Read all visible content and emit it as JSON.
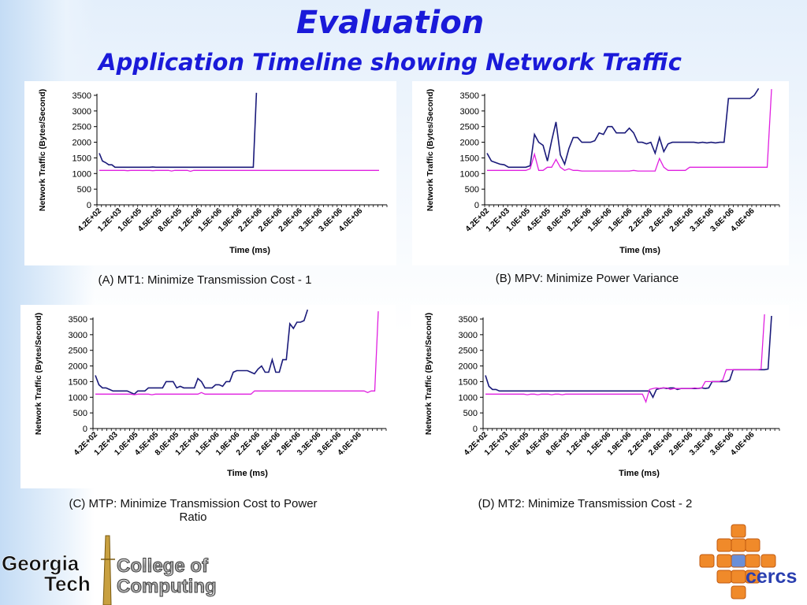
{
  "header": {
    "title": "Evaluation",
    "subtitle": "Application Timeline showing Network Traffic"
  },
  "colors": {
    "series_primary": "#1a1a7a",
    "series_secondary": "#e020e0",
    "title": "#1a1ad9"
  },
  "captions": {
    "a": "(A) MT1: Minimize Transmission Cost - 1",
    "b": "(B) MPV: Minimize Power Variance",
    "c_line1": "(C) MTP: Minimize Transmission Cost to Power",
    "c_line2": "Ratio",
    "d": "(D) MT2: Minimize Transmission Cost - 2"
  },
  "logos": {
    "left": {
      "word1": "Georgia",
      "word2": "Tech",
      "word3": "College of",
      "word4": "Computing"
    },
    "right": {
      "text": "cercs"
    }
  },
  "chart_data": [
    {
      "type": "line",
      "panel": "A",
      "xlabel": "Time (ms)",
      "ylabel": "Network Traffic (Bytes/Second)",
      "ylim": [
        0,
        3500
      ],
      "yticks": [
        0,
        500,
        1000,
        1500,
        2000,
        2500,
        3000,
        3500
      ],
      "x_tick_labels": [
        "4.2E+02",
        "1.2E+03",
        "1.0E+05",
        "4.5E+05",
        "8.0E+05",
        "1.2E+06",
        "1.5E+06",
        "1.9E+06",
        "2.2E+06",
        "2.6E+06",
        "2.9E+06",
        "3.3E+06",
        "3.6E+06",
        "4.0E+06"
      ],
      "series": [
        {
          "values": [
            1650,
            1400,
            1350,
            1280,
            1280,
            1200,
            1200,
            1200,
            1200,
            1200,
            1200,
            1200,
            1200,
            1200,
            1200,
            1200,
            1200,
            1210,
            1200,
            1200,
            1200,
            1200,
            1200,
            1200,
            1200,
            1200,
            1200,
            1200,
            1200,
            1200,
            1200,
            1200,
            1200,
            1200,
            1200,
            1200,
            1200,
            1200,
            1200,
            1200,
            1200,
            1200,
            1200,
            1200,
            1200,
            1200,
            1200,
            1200,
            1200,
            1200,
            3580
          ]
        },
        {
          "values": [
            1100,
            1100,
            1100,
            1100,
            1100,
            1100,
            1100,
            1100,
            1100,
            1090,
            1100,
            1100,
            1100,
            1100,
            1100,
            1100,
            1100,
            1090,
            1100,
            1100,
            1100,
            1100,
            1100,
            1080,
            1100,
            1100,
            1100,
            1100,
            1100,
            1070,
            1100,
            1100,
            1100,
            1100,
            1100,
            1100,
            1100,
            1100,
            1100,
            1100,
            1100,
            1100,
            1100,
            1100,
            1100,
            1100,
            1100,
            1100,
            1100,
            1100,
            1100,
            1100,
            1100,
            1100,
            1100,
            1100,
            1100,
            1100,
            1100,
            1100,
            1100,
            1100,
            1100,
            1100,
            1100,
            1100,
            1100,
            1100,
            1100,
            1100,
            1100,
            1100,
            1100,
            1100,
            1100,
            1100,
            1100,
            1100,
            1100,
            1100,
            1100,
            1100,
            1100,
            1100,
            1100,
            1100,
            1100,
            1100,
            1100,
            1100
          ]
        }
      ]
    },
    {
      "type": "line",
      "panel": "B",
      "xlabel": "Time (ms)",
      "ylabel": "Network Traffic (Bytes/Second)",
      "ylim": [
        0,
        3500
      ],
      "yticks": [
        0,
        500,
        1000,
        1500,
        2000,
        2500,
        3000,
        3500
      ],
      "x_tick_labels": [
        "4.2E+02",
        "1.2E+03",
        "1.0E+05",
        "4.5E+05",
        "8.0E+05",
        "1.2E+06",
        "1.5E+06",
        "1.9E+06",
        "2.2E+06",
        "2.6E+06",
        "2.9E+06",
        "3.3E+06",
        "3.6E+06",
        "4.0E+06"
      ],
      "series": [
        {
          "values": [
            1650,
            1400,
            1350,
            1300,
            1280,
            1200,
            1200,
            1200,
            1200,
            1200,
            1250,
            2250,
            2000,
            1900,
            1400,
            2050,
            2650,
            1600,
            1300,
            1800,
            2150,
            2150,
            2000,
            2000,
            2000,
            2050,
            2300,
            2250,
            2500,
            2500,
            2300,
            2300,
            2300,
            2450,
            2300,
            2000,
            2000,
            1950,
            2000,
            1650,
            2150,
            1700,
            1950,
            2000,
            2000,
            2000,
            2000,
            2000,
            2000,
            1980,
            2000,
            1980,
            2000,
            1980,
            2000,
            2000,
            3400,
            3400,
            3400,
            3400,
            3400,
            3400,
            3500,
            3720
          ]
        },
        {
          "values": [
            1100,
            1100,
            1100,
            1100,
            1100,
            1100,
            1100,
            1100,
            1100,
            1100,
            1150,
            1620,
            1100,
            1100,
            1200,
            1200,
            1450,
            1200,
            1100,
            1150,
            1100,
            1100,
            1080,
            1080,
            1080,
            1080,
            1080,
            1080,
            1080,
            1080,
            1080,
            1080,
            1080,
            1080,
            1100,
            1080,
            1080,
            1080,
            1080,
            1080,
            1480,
            1200,
            1100,
            1100,
            1100,
            1100,
            1100,
            1200,
            1200,
            1200,
            1200,
            1200,
            1200,
            1200,
            1200,
            1200,
            1200,
            1200,
            1200,
            1200,
            1200,
            1200,
            1200,
            1200,
            1200,
            1200,
            3700
          ]
        }
      ]
    },
    {
      "type": "line",
      "panel": "C",
      "xlabel": "Time (ms)",
      "ylabel": "Network Traffic (Bytes/Second)",
      "ylim": [
        0,
        3500
      ],
      "yticks": [
        0,
        500,
        1000,
        1500,
        2000,
        2500,
        3000,
        3500
      ],
      "x_tick_labels": [
        "4.2E+02",
        "1.2E+03",
        "1.0E+05",
        "4.5E+05",
        "8.0E+05",
        "1.2E+06",
        "1.5E+06",
        "1.9E+06",
        "2.2E+06",
        "2.6E+06",
        "2.9E+06",
        "3.3E+06",
        "3.6E+06",
        "4.0E+06"
      ],
      "series": [
        {
          "values": [
            1700,
            1400,
            1300,
            1300,
            1250,
            1200,
            1200,
            1200,
            1200,
            1200,
            1150,
            1100,
            1200,
            1200,
            1200,
            1300,
            1300,
            1300,
            1300,
            1300,
            1500,
            1500,
            1500,
            1300,
            1350,
            1300,
            1300,
            1300,
            1300,
            1600,
            1500,
            1300,
            1300,
            1300,
            1400,
            1400,
            1350,
            1500,
            1500,
            1800,
            1850,
            1850,
            1850,
            1850,
            1800,
            1750,
            1900,
            2000,
            1800,
            1800,
            2200,
            1800,
            1800,
            2200,
            2200,
            3350,
            3200,
            3400,
            3400,
            3450,
            3800
          ]
        },
        {
          "values": [
            1100,
            1100,
            1100,
            1100,
            1100,
            1100,
            1100,
            1100,
            1100,
            1100,
            1100,
            1080,
            1100,
            1100,
            1100,
            1100,
            1080,
            1100,
            1100,
            1100,
            1100,
            1100,
            1100,
            1100,
            1100,
            1100,
            1100,
            1100,
            1100,
            1100,
            1150,
            1100,
            1100,
            1100,
            1100,
            1100,
            1100,
            1100,
            1100,
            1100,
            1100,
            1100,
            1100,
            1100,
            1100,
            1200,
            1200,
            1200,
            1200,
            1200,
            1200,
            1200,
            1200,
            1200,
            1200,
            1200,
            1200,
            1200,
            1200,
            1200,
            1200,
            1200,
            1200,
            1200,
            1200,
            1200,
            1200,
            1200,
            1200,
            1200,
            1200,
            1200,
            1200,
            1200,
            1200,
            1200,
            1200,
            1150,
            1200,
            1200,
            3750
          ]
        }
      ]
    },
    {
      "type": "line",
      "panel": "D",
      "xlabel": "Time (ms)",
      "ylabel": "Network Traffic (Bytes/Second)",
      "ylim": [
        0,
        3500
      ],
      "yticks": [
        0,
        500,
        1000,
        1500,
        2000,
        2500,
        3000,
        3500
      ],
      "x_tick_labels": [
        "4.2E+02",
        "1.2E+03",
        "1.0E+05",
        "4.5E+05",
        "8.0E+05",
        "1.2E+06",
        "1.5E+06",
        "1.9E+06",
        "2.2E+06",
        "2.6E+06",
        "2.9E+06",
        "3.3E+06",
        "3.6E+06",
        "4.0E+06"
      ],
      "series": [
        {
          "values": [
            1700,
            1350,
            1250,
            1250,
            1200,
            1200,
            1200,
            1200,
            1200,
            1200,
            1200,
            1200,
            1200,
            1200,
            1200,
            1200,
            1200,
            1200,
            1200,
            1200,
            1200,
            1200,
            1200,
            1200,
            1200,
            1200,
            1200,
            1200,
            1200,
            1200,
            1200,
            1200,
            1200,
            1200,
            1200,
            1200,
            1200,
            1200,
            1200,
            1200,
            1200,
            1200,
            1200,
            1200,
            1200,
            1200,
            1200,
            1200,
            1000,
            1250,
            1280,
            1300,
            1280,
            1300,
            1300,
            1250,
            1280,
            1280,
            1280,
            1280,
            1280,
            1280,
            1300,
            1280,
            1300,
            1500,
            1500,
            1500,
            1500,
            1500,
            1550,
            1880,
            1880,
            1880,
            1880,
            1880,
            1880,
            1880,
            1880,
            1880,
            1880,
            1900,
            3600
          ]
        },
        {
          "values": [
            1100,
            1100,
            1100,
            1100,
            1100,
            1100,
            1100,
            1100,
            1100,
            1100,
            1100,
            1100,
            1080,
            1100,
            1100,
            1080,
            1100,
            1100,
            1100,
            1080,
            1100,
            1100,
            1080,
            1100,
            1100,
            1100,
            1100,
            1100,
            1100,
            1100,
            1100,
            1100,
            1100,
            1100,
            1100,
            1100,
            1100,
            1100,
            1100,
            1100,
            1100,
            1100,
            1100,
            1100,
            1100,
            1100,
            850,
            1250,
            1280,
            1300,
            1280,
            1300,
            1300,
            1250,
            1280,
            1280,
            1280,
            1280,
            1280,
            1280,
            1300,
            1280,
            1300,
            1500,
            1500,
            1500,
            1500,
            1500,
            1550,
            1880,
            1880,
            1880,
            1880,
            1880,
            1880,
            1880,
            1880,
            1880,
            1880,
            1900,
            3650
          ]
        }
      ]
    }
  ]
}
